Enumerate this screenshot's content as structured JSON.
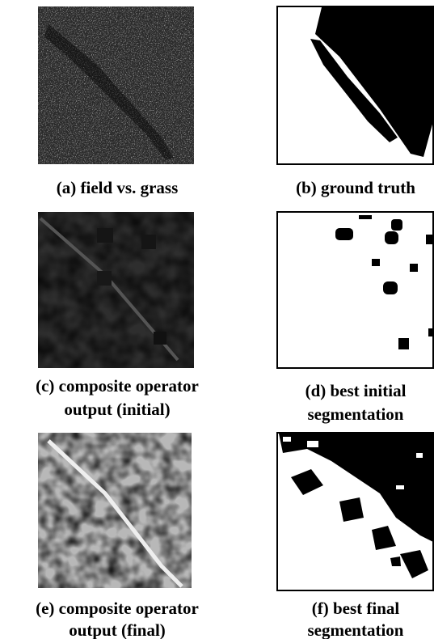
{
  "panels": [
    {
      "caption": [
        "(a) field vs. grass"
      ]
    },
    {
      "caption": [
        "(b) ground truth"
      ]
    },
    {
      "caption": [
        "(c) composite operator",
        "output (initial)"
      ]
    },
    {
      "caption": [
        "(d) best initial",
        "segmentation"
      ]
    },
    {
      "caption": [
        "(e) composite operator",
        "output (final)"
      ]
    },
    {
      "caption": [
        "(f) best final",
        "segmentation"
      ]
    }
  ]
}
